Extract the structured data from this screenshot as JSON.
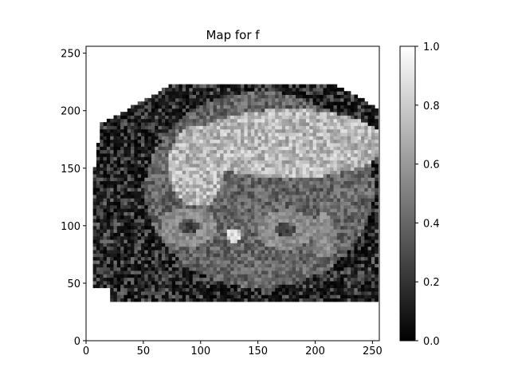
{
  "chart_data": {
    "type": "heatmap",
    "title": "Map for f",
    "xlabel": "",
    "ylabel": "",
    "xlim": [
      0,
      256
    ],
    "ylim": [
      0,
      256
    ],
    "x_ticks": [
      0,
      50,
      100,
      150,
      200,
      250
    ],
    "y_ticks": [
      0,
      50,
      100,
      150,
      200,
      250
    ],
    "colormap": "gray",
    "colorbar": {
      "range": [
        0.0,
        1.0
      ],
      "ticks": [
        "0.0",
        "0.2",
        "0.4",
        "0.6",
        "0.8",
        "1.0"
      ]
    },
    "image_content": "axial abdominal MRI parameter map",
    "grid": false
  }
}
